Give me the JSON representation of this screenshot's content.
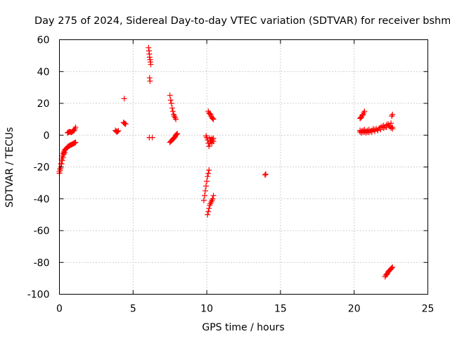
{
  "chart_data": {
    "type": "scatter",
    "title": "Day 275 of 2024, Sidereal Day-to-day VTEC variation (SDTVAR) for receiver bshm",
    "xlabel": "GPS time / hours",
    "ylabel": "SDTVAR / TECUs",
    "xlim": [
      0,
      25
    ],
    "ylim": [
      -100,
      60
    ],
    "x_ticks": [
      0,
      5,
      10,
      15,
      20,
      25
    ],
    "x_tick_labels": [
      "0",
      "5",
      "10",
      "15",
      "20",
      "25"
    ],
    "y_ticks": [
      -100,
      -80,
      -60,
      -40,
      -20,
      0,
      20,
      40,
      60
    ],
    "y_tick_labels": [
      "-100",
      "-80",
      "-60",
      "-40",
      "-20",
      "0",
      "20",
      "40",
      "60"
    ],
    "grid": true,
    "marker": "+",
    "color": "#ff0000",
    "series": [
      {
        "name": "arc-1",
        "x": [
          0.0,
          0.05,
          0.1,
          0.15,
          0.2,
          0.25,
          0.3,
          0.35,
          0.4,
          0.45,
          0.5,
          0.55,
          0.6,
          0.65,
          0.7,
          0.75,
          0.8,
          0.85,
          0.9,
          0.95,
          1.0,
          1.05,
          1.1
        ],
        "y": [
          -23,
          -21,
          -18,
          -15,
          -13,
          -11.5,
          -10.5,
          -9.5,
          -9,
          -8.5,
          -8,
          -7.5,
          -7,
          -6.8,
          -6.5,
          -6.2,
          -6,
          -5.8,
          -5.5,
          -5.3,
          -5,
          -4.8,
          -4.5
        ]
      },
      {
        "name": "arc-1b",
        "x": [
          0.0,
          0.05,
          0.1,
          0.15,
          0.2,
          0.25,
          0.3,
          0.35
        ],
        "y": [
          -24,
          -22,
          -20,
          -18,
          -16,
          -14,
          -12,
          -11
        ]
      },
      {
        "name": "arc-2",
        "x": [
          0.55,
          0.6,
          0.65,
          0.7,
          0.75,
          0.8,
          0.85,
          0.9,
          0.95,
          1.0,
          1.05,
          1.1
        ],
        "y": [
          1.5,
          1.8,
          2,
          2.2,
          2,
          1.8,
          2,
          2.5,
          2.8,
          3,
          4,
          5
        ]
      },
      {
        "name": "arc-3",
        "x": [
          3.8,
          3.85,
          3.9,
          3.95,
          4.0
        ],
        "y": [
          3,
          2.5,
          2,
          2.3,
          2.8
        ]
      },
      {
        "name": "arc-4",
        "x": [
          4.35,
          4.4,
          4.45,
          4.5,
          4.4
        ],
        "y": [
          8,
          7.5,
          7.2,
          7,
          23
        ]
      },
      {
        "name": "arc-5",
        "x": [
          6.05,
          6.08,
          6.1,
          6.12,
          6.15,
          6.18,
          6.2,
          6.12,
          6.15
        ],
        "y": [
          55,
          53,
          51,
          49,
          47.5,
          46,
          44.5,
          36,
          34
        ]
      },
      {
        "name": "arc-5b",
        "x": [
          6.1,
          6.3
        ],
        "y": [
          -1.5,
          -1.5
        ]
      },
      {
        "name": "arc-6",
        "x": [
          7.5,
          7.55,
          7.6,
          7.65,
          7.7,
          7.75,
          7.8,
          7.85,
          7.9
        ],
        "y": [
          25,
          22,
          20,
          17,
          15,
          13,
          12,
          11,
          10
        ]
      },
      {
        "name": "arc-6b",
        "x": [
          7.5,
          7.55,
          7.6,
          7.65,
          7.7,
          7.75,
          7.8,
          7.85,
          7.9,
          7.95,
          8.0
        ],
        "y": [
          -4.5,
          -4,
          -3.5,
          -3,
          -2.5,
          -2,
          -1.5,
          -1,
          0,
          0.5,
          1
        ]
      },
      {
        "name": "arc-7",
        "x": [
          9.8,
          9.85,
          9.9,
          9.95,
          10.0,
          10.05,
          10.1,
          10.15,
          10.2,
          10.25,
          10.3,
          10.35,
          10.4,
          10.45
        ],
        "y": [
          -41,
          -38,
          -35,
          -32,
          -29,
          -26,
          -24,
          -22,
          -2,
          -3,
          -4,
          -5,
          -3,
          -2
        ]
      },
      {
        "name": "arc-7b",
        "x": [
          9.95,
          10.0,
          10.05,
          10.1,
          10.15,
          10.2,
          10.25,
          10.3,
          10.35,
          10.4,
          10.45
        ],
        "y": [
          -0.5,
          -1.5,
          -3,
          -5,
          -7,
          -5,
          -4,
          -3,
          -2,
          -3,
          -4
        ]
      },
      {
        "name": "arc-8",
        "x": [
          10.05,
          10.1,
          10.15,
          10.2,
          10.25,
          10.3,
          10.35,
          10.4,
          10.45
        ],
        "y": [
          -50,
          -48,
          -46,
          -44,
          -43,
          -42,
          -41,
          -40,
          -38
        ]
      },
      {
        "name": "arc-9",
        "x": [
          10.1,
          10.15,
          10.2,
          10.25,
          10.3,
          10.35,
          10.4,
          10.45
        ],
        "y": [
          15,
          14,
          13.5,
          13,
          12,
          11,
          10.5,
          10
        ]
      },
      {
        "name": "arc-10",
        "x": [
          13.95,
          14.0
        ],
        "y": [
          -25,
          -24.5
        ]
      },
      {
        "name": "arc-11",
        "x": [
          20.4,
          20.5,
          20.6,
          20.7,
          20.8,
          20.9,
          21.0,
          21.1,
          21.2,
          21.3,
          21.4,
          21.5,
          21.6,
          21.7,
          21.8,
          21.9,
          22.0,
          22.1,
          22.2,
          22.3,
          22.4,
          22.5,
          22.6
        ],
        "y": [
          2,
          2.5,
          3,
          2,
          2.5,
          3,
          3.5,
          2.5,
          3,
          4,
          3.5,
          4,
          3,
          4.5,
          5,
          5.5,
          6,
          5,
          6.5,
          7,
          6,
          7.5,
          5
        ]
      },
      {
        "name": "arc-11b",
        "x": [
          20.4,
          20.5,
          20.6,
          20.7,
          20.8,
          20.9,
          21.0,
          21.2,
          21.4,
          21.6,
          21.8,
          22.0,
          22.2,
          22.4,
          22.5,
          22.6
        ],
        "y": [
          3,
          1.5,
          2,
          3.5,
          1.5,
          2,
          1.8,
          2,
          2.5,
          3,
          3.5,
          4.5,
          5,
          5.5,
          4.5,
          4
        ]
      },
      {
        "name": "arc-12",
        "x": [
          20.4,
          20.45,
          20.5,
          20.55,
          20.6,
          20.65,
          20.7
        ],
        "y": [
          10.5,
          11,
          11.5,
          12.5,
          13,
          14,
          15
        ]
      },
      {
        "name": "arc-13",
        "x": [
          22.55,
          22.6
        ],
        "y": [
          12,
          13
        ]
      },
      {
        "name": "arc-14",
        "x": [
          22.1,
          22.15,
          22.2,
          22.25,
          22.3,
          22.35,
          22.4,
          22.45,
          22.5,
          22.55,
          22.6
        ],
        "y": [
          -89,
          -88,
          -87.5,
          -87,
          -86,
          -85.5,
          -85,
          -84.5,
          -84,
          -83.5,
          -83
        ]
      }
    ]
  }
}
